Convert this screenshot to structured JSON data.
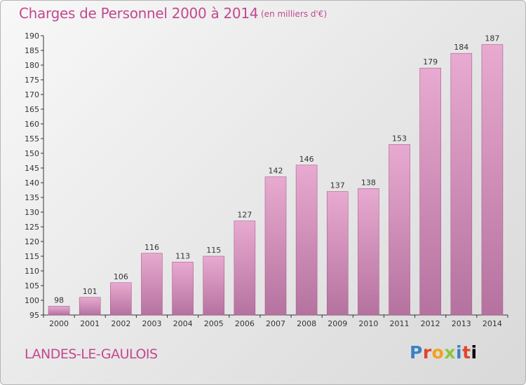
{
  "title": "Charges de Personnel 2000 à 2014",
  "subtitle": "(en milliers d'€)",
  "commune": "LANDES-LE-GAULOIS",
  "logo": [
    "P",
    "r",
    "o",
    "x",
    "i",
    "t",
    "i"
  ],
  "colors": {
    "title": "#c3488f",
    "bar_top": "#e8aad0",
    "bar_bottom": "#b5729f",
    "bar_stroke": "#a85e8e"
  },
  "chart_data": {
    "type": "bar",
    "categories": [
      "2000",
      "2001",
      "2002",
      "2003",
      "2004",
      "2005",
      "2006",
      "2007",
      "2008",
      "2009",
      "2010",
      "2011",
      "2012",
      "2013",
      "2014"
    ],
    "values": [
      98,
      101,
      106,
      116,
      113,
      115,
      127,
      142,
      146,
      137,
      138,
      153,
      179,
      184,
      187
    ],
    "title": "Charges de Personnel 2000 à 2014",
    "ylim": [
      95,
      190
    ],
    "yticks": [
      95,
      100,
      105,
      110,
      115,
      120,
      125,
      130,
      135,
      140,
      145,
      150,
      155,
      160,
      165,
      170,
      175,
      180,
      185,
      190
    ],
    "grid": false
  }
}
